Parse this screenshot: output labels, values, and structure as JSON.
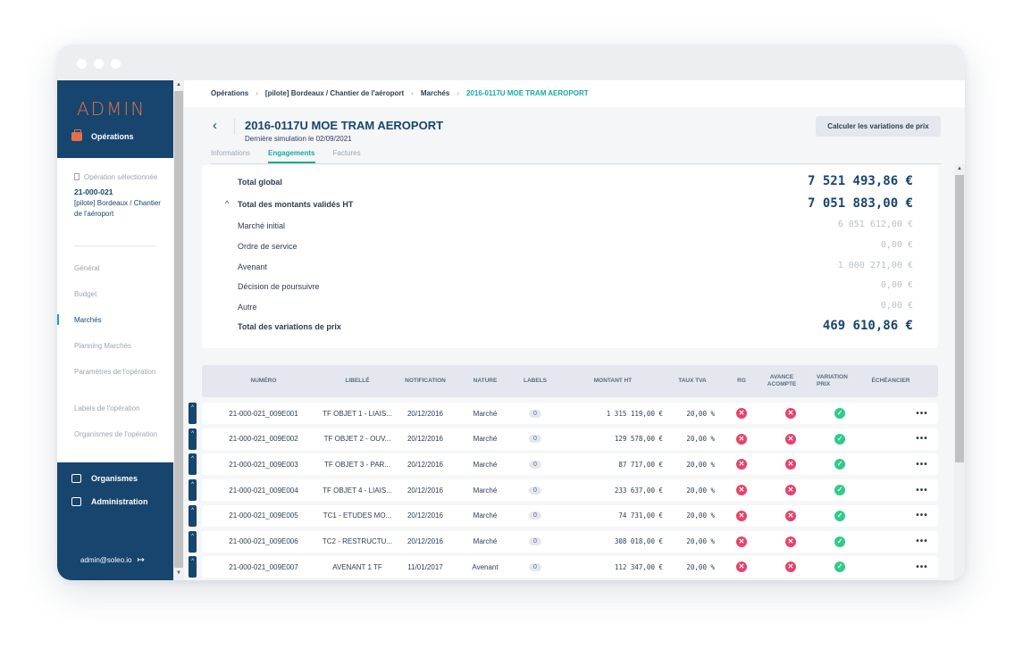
{
  "sidebar": {
    "logo": "ADMIN",
    "operations_label": "Opérations",
    "selected_label": "Opération sélectionnée",
    "selected_code": "21-000-021",
    "selected_name": "[pilote] Bordeaux / Chantier de l'aéroport",
    "items": [
      {
        "label": "Général"
      },
      {
        "label": "Budget"
      },
      {
        "label": "Marchés"
      },
      {
        "label": "Planning Marchés"
      },
      {
        "label": "Paramètres de l'opération"
      },
      {
        "label": "Labels de l'opération"
      },
      {
        "label": "Organismes de l'opération"
      }
    ],
    "bottom_items": [
      {
        "label": "Organismes"
      },
      {
        "label": "Administration"
      }
    ],
    "user": "admin@soleo.io",
    "accent_color": "#e2704c",
    "nav_color": "#17456e"
  },
  "breadcrumb": {
    "items": [
      "Opérations",
      "[pilote] Bordeaux / Chantier de l'aéroport",
      "Marchés"
    ],
    "current": "2016-0117U MOE TRAM AEROPORT"
  },
  "header": {
    "title": "2016-0117U MOE TRAM AEROPORT",
    "subtitle": "Dernière simulation le 02/09/2021",
    "calc_button": "Calculer les variations de prix",
    "tabs": [
      {
        "label": "Informations"
      },
      {
        "label": "Engagements"
      },
      {
        "label": "Factures"
      }
    ],
    "active_tab": "Engagements"
  },
  "summary": {
    "total_global_label": "Total global",
    "total_global": "7 521 493,86 €",
    "validated_label": "Total des montants validés HT",
    "validated": "7 051 883,00 €",
    "lines": [
      {
        "label": "Marché initial",
        "amount": "6 051 612,00 €"
      },
      {
        "label": "Ordre de service",
        "amount": "0,00 €"
      },
      {
        "label": "Avenant",
        "amount": "1 000 271,00 €"
      },
      {
        "label": "Décision de poursuivre",
        "amount": "0,00 €"
      },
      {
        "label": "Autre",
        "amount": "0,00 €"
      }
    ],
    "variations_label": "Total des variations de prix",
    "variations": "469 610,86 €"
  },
  "table": {
    "columns": {
      "numero": "NUMÉRO",
      "libelle": "LIBELLÉ",
      "notification": "NOTIFICATION",
      "nature": "NATURE",
      "labels": "LABELS",
      "montant": "MONTANT HT",
      "tva": "TAUX TVA",
      "rg": "RG",
      "avance_1": "AVANCE",
      "avance_2": "ACOMPTE",
      "variation_1": "VARIATION",
      "variation_2": "PRIX",
      "echeancier": "ÉCHÉANCIER"
    },
    "rows": [
      {
        "numero": "21-000-021_009E001",
        "libelle": "TF OBJET 1 - LIAIS...",
        "notification": "20/12/2016",
        "nature": "Marché",
        "labels": "0",
        "montant": "1 315 119,00 €",
        "tva": "20,00 %",
        "rg": false,
        "avance": false,
        "variation": true,
        "more": "•••"
      },
      {
        "numero": "21-000-021_009E002",
        "libelle": "TF OBJET 2 - OUV...",
        "notification": "20/12/2016",
        "nature": "Marché",
        "labels": "0",
        "montant": "129 578,00 €",
        "tva": "20,00 %",
        "rg": false,
        "avance": false,
        "variation": true,
        "more": "•••"
      },
      {
        "numero": "21-000-021_009E003",
        "libelle": "TF OBJET 3 - PAR...",
        "notification": "20/12/2016",
        "nature": "Marché",
        "labels": "0",
        "montant": "87 717,00 €",
        "tva": "20,00 %",
        "rg": false,
        "avance": false,
        "variation": true,
        "more": "•••"
      },
      {
        "numero": "21-000-021_009E004",
        "libelle": "TF OBJET 4 - LIAIS...",
        "notification": "20/12/2016",
        "nature": "Marché",
        "labels": "0",
        "montant": "233 637,00 €",
        "tva": "20,00 %",
        "rg": false,
        "avance": false,
        "variation": true,
        "more": "•••"
      },
      {
        "numero": "21-000-021_009E005",
        "libelle": "TC1 - ETUDES MO...",
        "notification": "20/12/2016",
        "nature": "Marché",
        "labels": "0",
        "montant": "74 731,00 €",
        "tva": "20,00 %",
        "rg": false,
        "avance": false,
        "variation": true,
        "more": "•••"
      },
      {
        "numero": "21-000-021_009E006",
        "libelle": "TC2 - RESTRUCTU...",
        "notification": "20/12/2016",
        "nature": "Marché",
        "labels": "0",
        "montant": "308 018,00 €",
        "tva": "20,00 %",
        "rg": false,
        "avance": false,
        "variation": true,
        "more": "•••"
      },
      {
        "numero": "21-000-021_009E007",
        "libelle": "AVENANT 1 TF",
        "notification": "11/01/2017",
        "nature": "Avenant",
        "labels": "0",
        "montant": "112 347,00 €",
        "tva": "20,00 %",
        "rg": false,
        "avance": false,
        "variation": true,
        "more": "•••"
      }
    ],
    "status_colors": {
      "no": "#e6436a",
      "yes": "#2fcb8a"
    }
  }
}
